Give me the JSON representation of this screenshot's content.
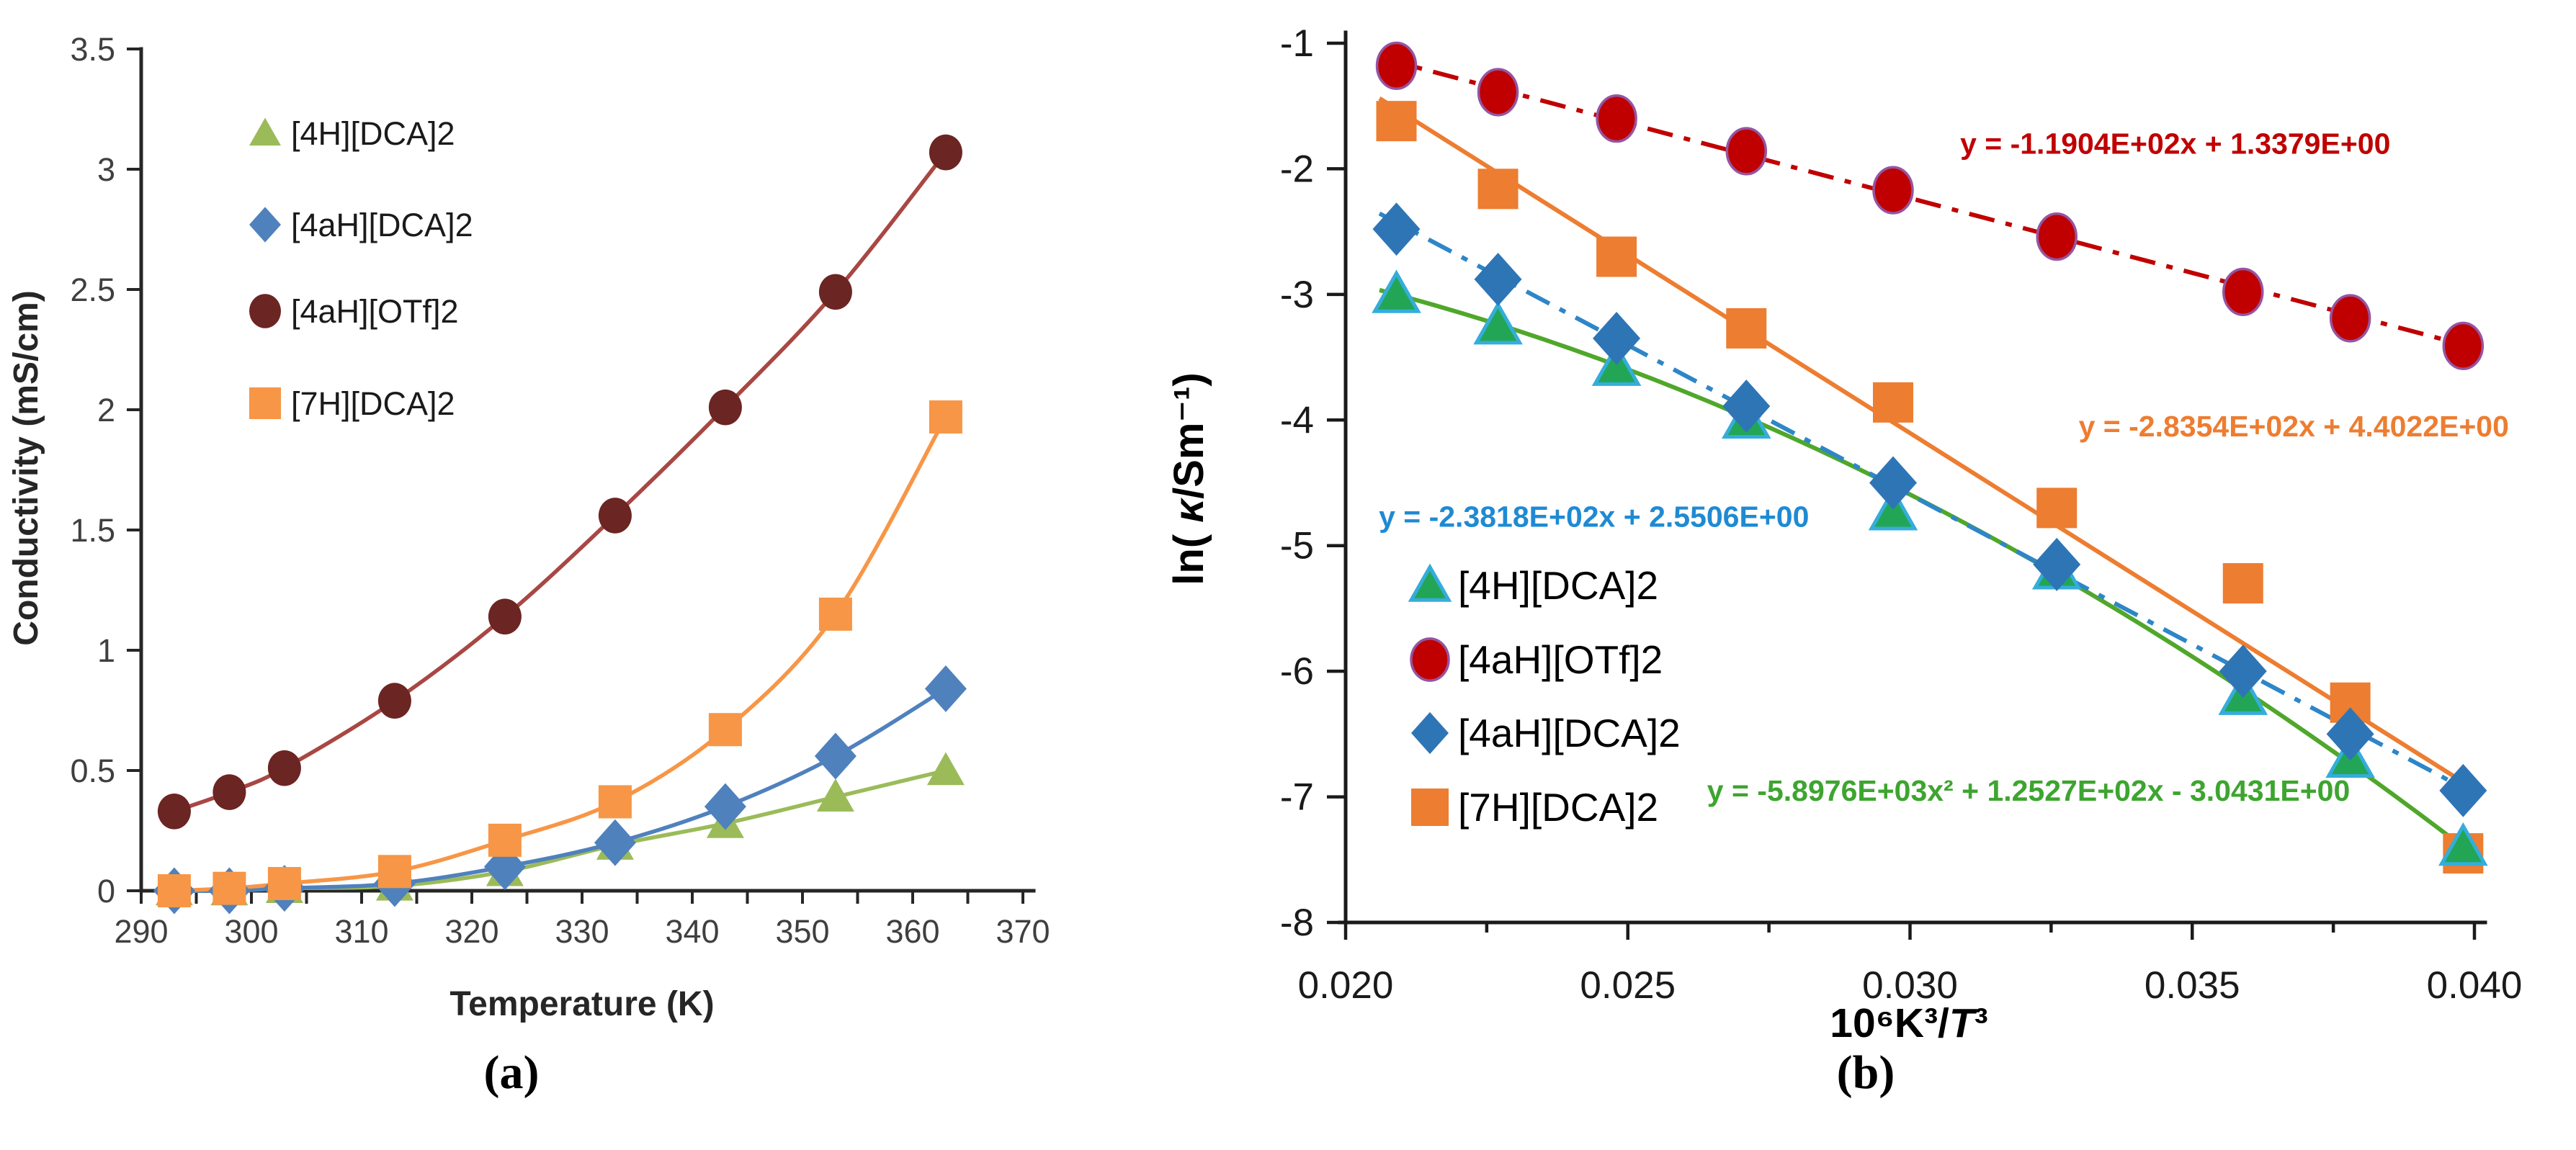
{
  "figure": {
    "background": "#ffffff"
  },
  "chart_data": [
    {
      "id": "a",
      "type": "line",
      "caption": "(a)",
      "xlabel": "Temperature (K)",
      "ylabel": "Conductivity (mS/cm)",
      "xlim": [
        290,
        370
      ],
      "ylim": [
        0,
        3.5
      ],
      "xticks": [
        290,
        300,
        310,
        320,
        330,
        340,
        350,
        360,
        370
      ],
      "xtick_labels": [
        "290",
        "300",
        "310",
        "320",
        "330",
        "340",
        "350",
        "360",
        "370"
      ],
      "xminor_step": 5,
      "yticks": [
        0,
        0.5,
        1,
        1.5,
        2,
        2.5,
        3,
        3.5
      ],
      "ytick_labels": [
        "0",
        "0.5",
        "1",
        "1.5",
        "2",
        "2.5",
        "3",
        "3.5"
      ],
      "x": [
        293,
        298,
        303,
        313,
        323,
        333,
        343,
        353,
        363
      ],
      "series": [
        {
          "name": "[4H][DCA]2",
          "marker": "triangle",
          "marker_color": "#9BBB59",
          "marker_stroke": "none",
          "line_color": "#9BBB59",
          "line_style": "solid",
          "values": [
            0.0,
            0.0,
            0.01,
            0.02,
            0.08,
            0.19,
            0.28,
            0.39,
            0.5
          ]
        },
        {
          "name": "[4aH][DCA]2",
          "marker": "diamond",
          "marker_color": "#4F81BD",
          "marker_stroke": "none",
          "line_color": "#4F81BD",
          "line_style": "solid",
          "values": [
            0.0,
            0.0,
            0.01,
            0.03,
            0.1,
            0.2,
            0.35,
            0.56,
            0.84
          ]
        },
        {
          "name": "[4aH][OTf]2",
          "marker": "circle",
          "marker_color": "#6B2523",
          "marker_stroke": "none",
          "line_color": "#A84743",
          "line_style": "solid",
          "values": [
            0.33,
            0.41,
            0.51,
            0.79,
            1.14,
            1.56,
            2.01,
            2.49,
            3.07
          ]
        },
        {
          "name": "[7H][DCA]2",
          "marker": "square",
          "marker_color": "#F79646",
          "marker_stroke": "none",
          "line_color": "#F79646",
          "line_style": "solid",
          "values": [
            0.0,
            0.01,
            0.03,
            0.08,
            0.21,
            0.37,
            0.67,
            1.15,
            1.97
          ]
        }
      ],
      "legend": {
        "labels": [
          "[4H][DCA]2",
          "[4aH][DCA]2",
          "[4aH][OTf]2",
          "[7H][DCA]2"
        ],
        "position": "upper-left-inside"
      }
    },
    {
      "id": "b",
      "type": "scatter",
      "caption": "(b)",
      "xlabel": "10⁶K³/T³",
      "xlabel_parts": [
        [
          "10⁶K³/",
          false
        ],
        [
          "T",
          true
        ],
        [
          "³",
          false
        ]
      ],
      "ylabel": "ln( κ/Sm⁻¹)",
      "ylabel_parts": [
        [
          "ln( ",
          false
        ],
        [
          "κ",
          true
        ],
        [
          "/Sm⁻¹)",
          false
        ]
      ],
      "xlim": [
        0.02,
        0.04
      ],
      "ylim": [
        -8,
        -1
      ],
      "xticks": [
        0.02,
        0.025,
        0.03,
        0.035,
        0.04
      ],
      "xtick_labels": [
        "0.020",
        "0.025",
        "0.030",
        "0.035",
        "0.040"
      ],
      "xminor_step": 0.0025,
      "yticks": [
        -1,
        -2,
        -3,
        -4,
        -5,
        -6,
        -7,
        -8
      ],
      "ytick_labels": [
        "-1",
        "-2",
        "-3",
        "-4",
        "-5",
        "-6",
        "-7",
        "-8"
      ],
      "x": [
        0.0209,
        0.0227,
        0.0248,
        0.0271,
        0.0297,
        0.0326,
        0.0359,
        0.0378,
        0.0398
      ],
      "series": [
        {
          "name": "[4H][DCA]2",
          "marker": "triangle",
          "marker_color": "#22A656",
          "marker_stroke": "#35ADDB",
          "values": [
            -3.0,
            -3.25,
            -3.58,
            -4.0,
            -4.73,
            -5.2,
            -6.2,
            -6.7,
            -7.4
          ],
          "trend": {
            "kind": "quadratic",
            "coeffs": [
              -5897.6,
              125.27,
              -3.0431
            ],
            "color": "#4FA72B",
            "dash": "solid",
            "equation": "y = -5.8976E+03x² + 1.2527E+02x - 3.0431E+00",
            "equation_color": "#3DA52F",
            "equation_anchor": [
              0.0321,
              -6.95
            ]
          }
        },
        {
          "name": "[4aH][OTf]2",
          "marker": "circle",
          "marker_color": "#C00000",
          "marker_stroke": "#9455A2",
          "values": [
            -1.18,
            -1.39,
            -1.6,
            -1.86,
            -2.17,
            -2.54,
            -2.98,
            -3.19,
            -3.41
          ],
          "trend": {
            "kind": "linear",
            "coeffs": [
              -119.04,
              1.3379
            ],
            "color": "#C00000",
            "dash": "dashdot",
            "equation": "y = -1.1904E+02x + 1.3379E+00",
            "equation_color": "#C00000",
            "equation_anchor": [
              0.0347,
              -1.8
            ]
          }
        },
        {
          "name": "[4aH][DCA]2",
          "marker": "diamond",
          "marker_color": "#2E75B6",
          "marker_stroke": "none",
          "values": [
            -2.48,
            -2.88,
            -3.35,
            -3.89,
            -4.5,
            -5.15,
            -6.0,
            -6.5,
            -6.95
          ],
          "trend": {
            "kind": "linear",
            "coeffs": [
              -238.18,
              2.5506
            ],
            "color": "#2E86C8",
            "dash": "dashdot",
            "equation": "y = -2.3818E+02x + 2.5506E+00",
            "equation_color": "#1F8AD3",
            "equation_anchor": [
              0.0244,
              -4.77
            ]
          }
        },
        {
          "name": "[7H][DCA]2",
          "marker": "square",
          "marker_color": "#ED7D31",
          "marker_stroke": "none",
          "values": [
            -1.62,
            -2.16,
            -2.7,
            -3.27,
            -3.86,
            -4.7,
            -5.3,
            -6.25,
            -7.45
          ],
          "trend": {
            "kind": "linear",
            "coeffs": [
              -283.54,
              4.4022
            ],
            "color": "#ED7D31",
            "dash": "solid",
            "equation": "y = -2.8354E+02x + 4.4022E+00",
            "equation_color": "#ED7D31",
            "equation_anchor": [
              0.0368,
              -4.05
            ]
          }
        }
      ],
      "legend": {
        "labels": [
          "[4H][DCA]2",
          "[4aH][OTf]2",
          "[4aH][DCA]2",
          "[7H][DCA]2"
        ],
        "position": "lower-left-inside"
      }
    }
  ]
}
